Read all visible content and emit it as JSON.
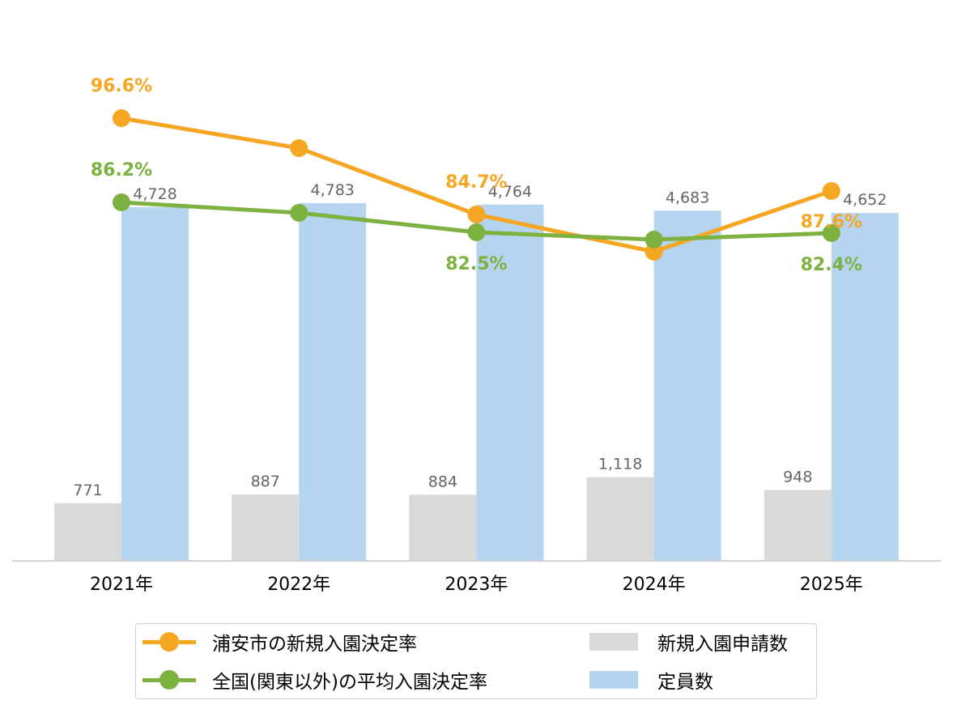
{
  "chart_data": {
    "type": "bar",
    "categories": [
      "2021年",
      "2022年",
      "2023年",
      "2024年",
      "2025年"
    ],
    "bar_series": [
      {
        "name": "新規入園申請数",
        "values": [
          771,
          887,
          884,
          1118,
          948
        ],
        "labels": [
          "771",
          "887",
          "884",
          "1,118",
          "948"
        ],
        "color": "#d9d9d9"
      },
      {
        "name": "定員数",
        "values": [
          4728,
          4783,
          4764,
          4683,
          4652
        ],
        "labels": [
          "4,728",
          "4,783",
          "4,764",
          "4,683",
          "4,652"
        ],
        "color": "#b5d4ef"
      }
    ],
    "line_series": [
      {
        "name": "浦安市の新規入園決定率",
        "values": [
          96.6,
          92.9,
          84.7,
          80.1,
          87.6
        ],
        "labels": [
          "96.6%",
          "",
          "84.7%",
          "",
          "87.6%"
        ],
        "color": "#f5a623"
      },
      {
        "name": "全国(関東以外)の平均入園決定率",
        "values": [
          86.2,
          84.9,
          82.5,
          81.6,
          82.4
        ],
        "labels": [
          "86.2%",
          "",
          "82.5%",
          "",
          "82.4%"
        ],
        "color": "#7db240"
      }
    ],
    "bar_ylim": [
      0,
      6000
    ],
    "line_ylim": [
      55,
      100
    ],
    "grid": false,
    "legend_position": "bottom"
  }
}
